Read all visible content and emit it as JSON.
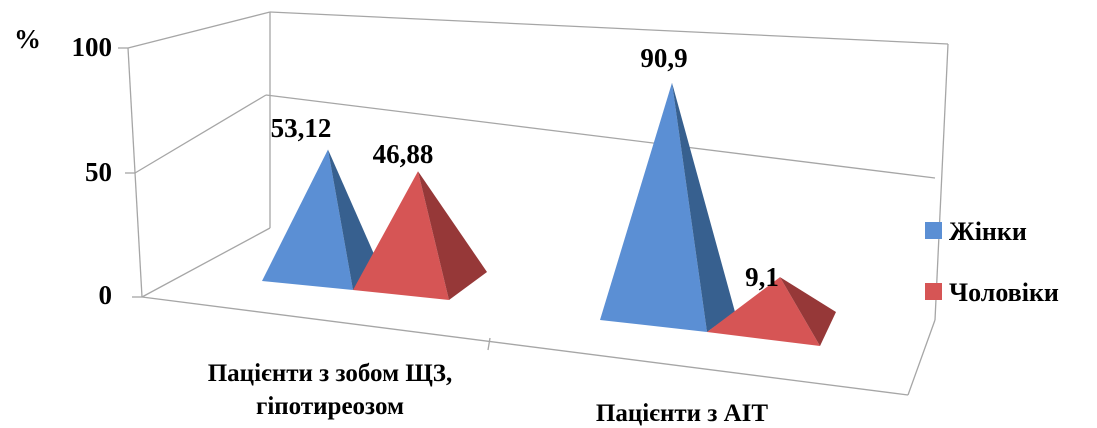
{
  "chart_data": {
    "type": "bar",
    "style": "3d-pyramid",
    "ylabel": "%",
    "ylim": [
      0,
      100
    ],
    "yticks": [
      "0",
      "50",
      "100"
    ],
    "categories": [
      [
        "Пацієнти з зобом ЩЗ,",
        "гіпотиреозом"
      ],
      [
        "Пацієнти з АІТ"
      ]
    ],
    "series": [
      {
        "name": "Жінки",
        "values": [
          53.12,
          90.9
        ],
        "labels": [
          "53,12",
          "90,9"
        ],
        "color": "#5b8fd4",
        "dark": "#37608f"
      },
      {
        "name": "Чоловіки",
        "values": [
          46.88,
          9.1
        ],
        "labels": [
          "46,88",
          "9,1"
        ],
        "color": "#d65555",
        "dark": "#963838"
      }
    ],
    "legend_position": "right",
    "grid": true
  }
}
